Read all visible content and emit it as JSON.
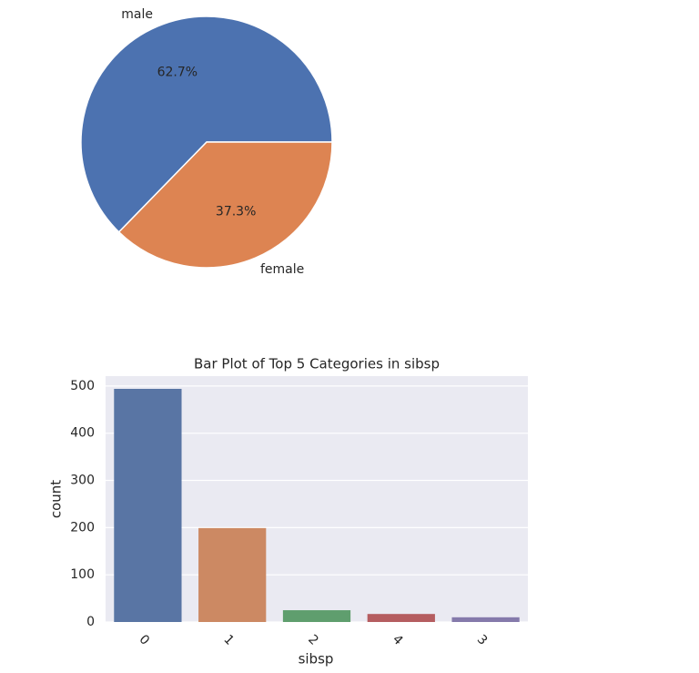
{
  "chart_data": [
    {
      "type": "pie",
      "categories": [
        "male",
        "female"
      ],
      "values": [
        62.7,
        37.3
      ],
      "value_labels": [
        "62.7%",
        "37.3%"
      ],
      "colors": [
        "#4c72b0",
        "#dd8452"
      ]
    },
    {
      "type": "bar",
      "title": "Bar Plot of Top 5 Categories in sibsp",
      "xlabel": "sibsp",
      "ylabel": "count",
      "categories": [
        "0",
        "1",
        "2",
        "4",
        "3"
      ],
      "values": [
        494,
        199,
        25,
        17,
        10
      ],
      "colors": [
        "#5975a4",
        "#cc8963",
        "#5f9e6e",
        "#b55d60",
        "#857aab"
      ],
      "ylim": [
        0,
        521
      ],
      "yticks": [
        0,
        100,
        200,
        300,
        400,
        500
      ],
      "grid": true
    }
  ]
}
